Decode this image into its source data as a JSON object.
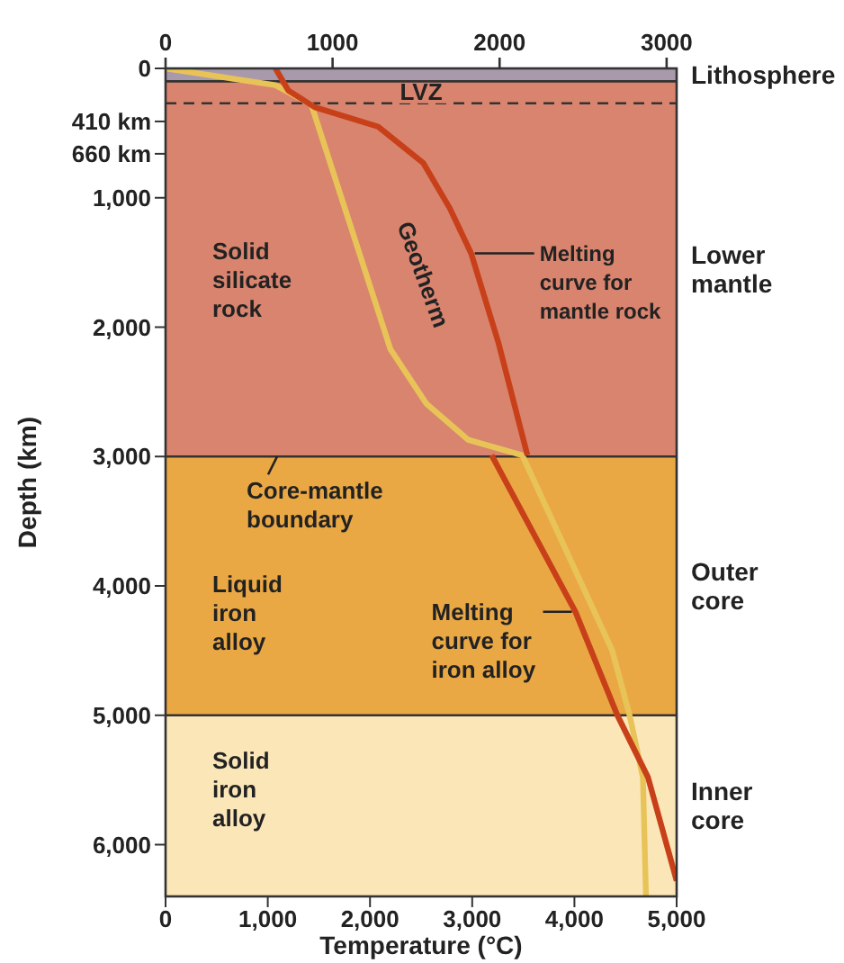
{
  "chart_data": {
    "type": "line",
    "xlabel": "Temperature (°C)",
    "ylabel": "Depth (km)",
    "xlim": [
      0,
      5000
    ],
    "xticks": [
      0,
      {
        "value": 1000,
        "label": "1,000"
      },
      {
        "value": 2000,
        "label": "2,000"
      },
      {
        "value": 3000,
        "label": "3,000"
      },
      {
        "value": 4000,
        "label": "4,000"
      },
      {
        "value": 5000,
        "label": "5,000"
      }
    ],
    "x2lim": [
      0,
      3060
    ],
    "x2ticks": [
      0,
      1000,
      2000,
      3000
    ],
    "ylim": [
      6400,
      0
    ],
    "yticks": [
      0,
      {
        "value": 410,
        "label": "410 km"
      },
      {
        "value": 660,
        "label": "660 km"
      },
      {
        "value": 1000,
        "label": "1,000"
      },
      {
        "value": 2000,
        "label": "2,000"
      },
      {
        "value": 3000,
        "label": "3,000"
      },
      {
        "value": 4000,
        "label": "4,000"
      },
      {
        "value": 5000,
        "label": "5,000"
      },
      {
        "value": 6000,
        "label": "6,000"
      }
    ],
    "marker": "none",
    "series": [
      {
        "name": "Geotherm",
        "color": "#e8c458",
        "x": [
          0,
          1075,
          1426,
          2200,
          2550,
          2960,
          3490,
          4370,
          4540,
          4670,
          4700
        ],
        "values": [
          0,
          130,
          280,
          2170,
          2590,
          2870,
          2990,
          4500,
          5000,
          5480,
          6400
        ]
      },
      {
        "name": "Melting curve for mantle rock",
        "color": "#c8401a",
        "x": [
          1075,
          1200,
          1460,
          2080,
          2520,
          2780,
          2990,
          3260,
          3540
        ],
        "values": [
          0,
          170,
          300,
          450,
          730,
          1080,
          1430,
          2130,
          2990
        ]
      },
      {
        "name": "Melting curve for iron alloy",
        "color": "#c8401a",
        "x": [
          3190,
          4010,
          4420,
          4720,
          5000
        ],
        "values": [
          2990,
          4200,
          5000,
          5480,
          6280
        ]
      }
    ],
    "bands": [
      {
        "axis": "y",
        "from": 0,
        "to": 100,
        "label": "Lithosphere",
        "color": "#a99aab"
      },
      {
        "axis": "y",
        "from": 100,
        "to": 3000,
        "label": "Lower mantle",
        "color": "#d9846e"
      },
      {
        "axis": "y",
        "from": 3000,
        "to": 5000,
        "label": "Outer core",
        "color": "#eaa844"
      },
      {
        "axis": "y",
        "from": 5000,
        "to": 6400,
        "label": "Inner core",
        "color": "#fbe6b8"
      }
    ],
    "ref_lines": [
      {
        "axis": "y",
        "value": 100,
        "label": null,
        "color": "#333333",
        "line_style": "solid"
      },
      {
        "axis": "y",
        "value": 270,
        "label": "LVZ",
        "color": "#333333",
        "line_style": "dashed"
      },
      {
        "axis": "y",
        "value": 3000,
        "label": "Core-mantle boundary",
        "color": "#333333",
        "line_style": "solid"
      },
      {
        "axis": "y",
        "value": 5000,
        "label": null,
        "color": "#333333",
        "line_style": "solid"
      }
    ],
    "annotations": [
      "Solid silicate rock",
      "Liquid iron alloy",
      "Solid iron alloy"
    ]
  }
}
